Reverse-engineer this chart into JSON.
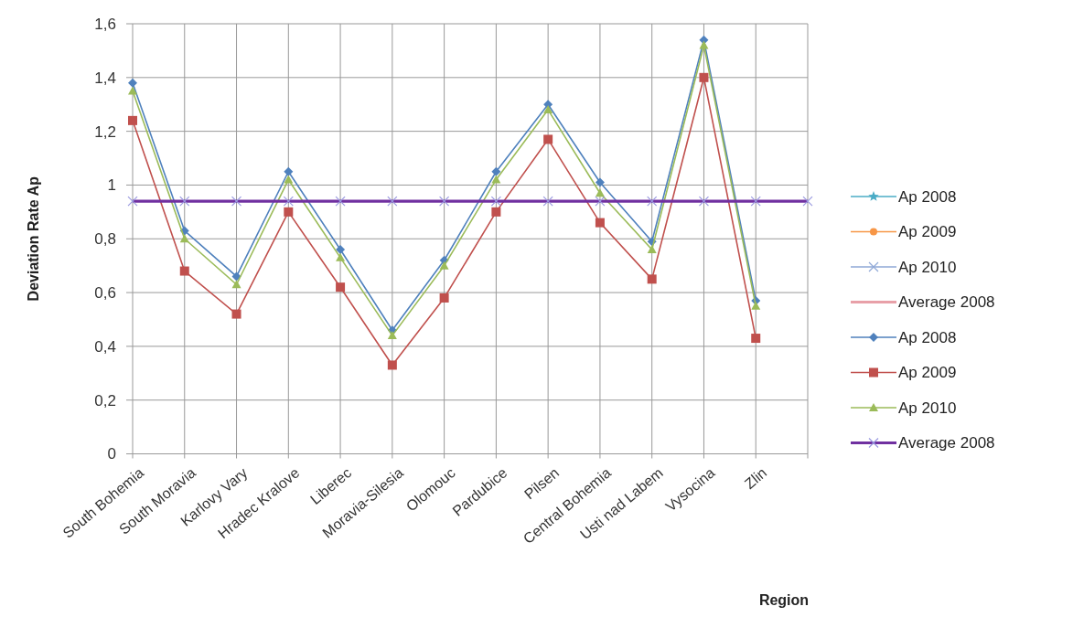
{
  "chart_data": {
    "type": "line",
    "xlabel": "Region",
    "ylabel": "Deviation Rate Ap",
    "categories": [
      "South Bohemia",
      "South Moravia",
      "Karlovy Vary",
      "Hradec Kralove",
      "Liberec",
      "Moravia-Silesia",
      "Olomouc",
      "Pardubice",
      "Pilsen",
      "Central Bohemia",
      "Usti nad Labem",
      "Vysocina",
      "Zlin",
      null
    ],
    "series": [
      {
        "name": "Ap 2008",
        "color": "#4bacc6",
        "marker": "star",
        "values": [
          null,
          null,
          null,
          null,
          null,
          null,
          null,
          null,
          null,
          null,
          null,
          null,
          null,
          null
        ]
      },
      {
        "name": "Ap 2009",
        "color": "#f79646",
        "marker": "circle",
        "values": [
          null,
          null,
          null,
          null,
          null,
          null,
          null,
          null,
          null,
          null,
          null,
          null,
          null,
          null
        ]
      },
      {
        "name": "Ap 2010",
        "color": "#8fa8d6",
        "marker": "cross",
        "values": [
          null,
          null,
          null,
          null,
          null,
          null,
          null,
          null,
          null,
          null,
          null,
          null,
          null,
          null
        ]
      },
      {
        "name": "Average 2008",
        "color": "#e8a0a8",
        "marker": "none",
        "values": [
          null,
          null,
          null,
          null,
          null,
          null,
          null,
          null,
          null,
          null,
          null,
          null,
          null,
          null
        ]
      },
      {
        "name": "Ap 2008",
        "color": "#4f81bd",
        "marker": "diamond",
        "values": [
          1.38,
          0.83,
          0.66,
          1.05,
          0.76,
          0.46,
          0.72,
          1.05,
          1.3,
          1.01,
          0.79,
          1.54,
          0.57,
          null
        ]
      },
      {
        "name": "Ap 2009",
        "color": "#c0504d",
        "marker": "square",
        "values": [
          1.24,
          0.68,
          0.52,
          0.9,
          0.62,
          0.33,
          0.58,
          0.9,
          1.17,
          0.86,
          0.65,
          1.4,
          0.43,
          null
        ]
      },
      {
        "name": "Ap 2010",
        "color": "#9bbb59",
        "marker": "triangle",
        "values": [
          1.35,
          0.8,
          0.63,
          1.02,
          0.73,
          0.44,
          0.7,
          1.02,
          1.28,
          0.97,
          0.76,
          1.52,
          0.55,
          null
        ]
      },
      {
        "name": "Average 2008",
        "color": "#7030a0",
        "marker": "cross",
        "values": [
          0.94,
          0.94,
          0.94,
          0.94,
          0.94,
          0.94,
          0.94,
          0.94,
          0.94,
          0.94,
          0.94,
          0.94,
          0.94,
          0.94
        ]
      }
    ],
    "ylim": [
      0,
      1.6
    ],
    "yticks": [
      0,
      {
        "value": 0.2,
        "label": "0,2"
      },
      {
        "value": 0.4,
        "label": "0,4"
      },
      {
        "value": 0.6,
        "label": "0,6"
      },
      {
        "value": 0.8,
        "label": "0,8"
      },
      1,
      {
        "value": 1.2,
        "label": "1,2"
      },
      {
        "value": 1.4,
        "label": "1,4"
      },
      {
        "value": 1.6,
        "label": "1,6"
      }
    ],
    "grid": true,
    "legend": "right"
  }
}
